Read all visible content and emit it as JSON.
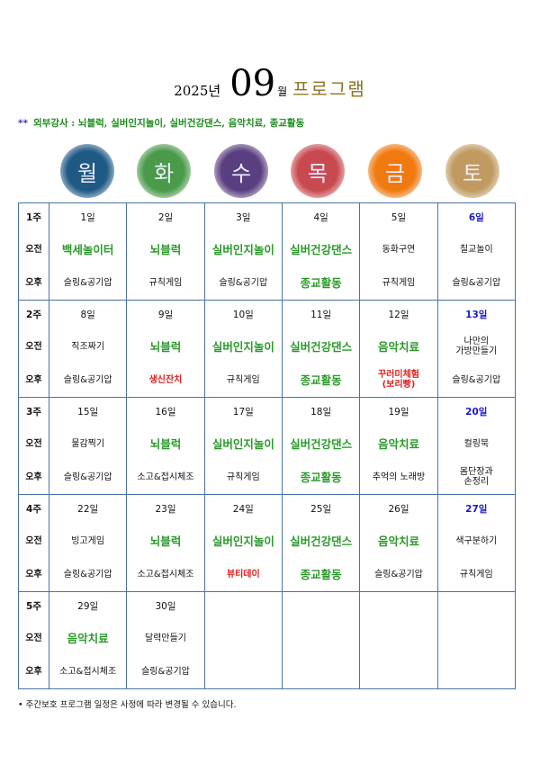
{
  "header": {
    "year": "2025년",
    "month": "09",
    "month_suffix": "월",
    "program": "프로그램"
  },
  "subtitle": {
    "marker": "**",
    "text": "외부강사 : 뇌블럭, 실버인지놀이, 실버건강댄스, 음악치료, 종교활동"
  },
  "weekdays": [
    {
      "label": "월",
      "color": "#1f5a85"
    },
    {
      "label": "화",
      "color": "#4a9a4a"
    },
    {
      "label": "수",
      "color": "#5a3f80"
    },
    {
      "label": "목",
      "color": "#c84a50"
    },
    {
      "label": "금",
      "color": "#f07a10"
    },
    {
      "label": "토",
      "color": "#c09a60"
    }
  ],
  "colors": {
    "green": "#2a9a2a",
    "red": "#e02020",
    "blue": "#1a1acc",
    "black": "#111111",
    "border": "#4a72a8"
  },
  "row_labels": {
    "am": "오전",
    "pm": "오후"
  },
  "weeks": [
    {
      "label": "1주",
      "days": [
        {
          "date": "1일",
          "am": "백세놀이터",
          "am_color": "green",
          "pm": "슬링&공기압"
        },
        {
          "date": "2일",
          "am": "뇌블럭",
          "am_color": "green",
          "pm": "규칙게임"
        },
        {
          "date": "3일",
          "am": "실버인지놀이",
          "am_color": "green",
          "pm": "슬링&공기압"
        },
        {
          "date": "4일",
          "am": "실버건강댄스",
          "am_color": "green",
          "pm": "종교활동",
          "pm_color": "green"
        },
        {
          "date": "5일",
          "am": "동화구연",
          "pm": "규칙게임"
        },
        {
          "date": "6일",
          "date_color": "blue",
          "am": "칠교놀이",
          "pm": "슬링&공기압"
        }
      ]
    },
    {
      "label": "2주",
      "days": [
        {
          "date": "8일",
          "am": "직조짜기",
          "pm": "슬링&공기압"
        },
        {
          "date": "9일",
          "am": "뇌블럭",
          "am_color": "green",
          "pm": "생신잔치",
          "pm_color": "red"
        },
        {
          "date": "10일",
          "am": "실버인지놀이",
          "am_color": "green",
          "pm": "규칙게임"
        },
        {
          "date": "11일",
          "am": "실버건강댄스",
          "am_color": "green",
          "pm": "종교활동",
          "pm_color": "green"
        },
        {
          "date": "12일",
          "am": "음악치료",
          "am_color": "green",
          "pm": "꾸러미체험\n(보리빵)",
          "pm_color": "red"
        },
        {
          "date": "13일",
          "date_color": "blue",
          "am": "나만의\n가방만들기",
          "pm": "슬링&공기압"
        }
      ]
    },
    {
      "label": "3주",
      "days": [
        {
          "date": "15일",
          "am": "물감찍기",
          "pm": "슬링&공기압"
        },
        {
          "date": "16일",
          "am": "뇌블럭",
          "am_color": "green",
          "pm": "소고&접시체조"
        },
        {
          "date": "17일",
          "am": "실버인지놀이",
          "am_color": "green",
          "pm": "규칙게임"
        },
        {
          "date": "18일",
          "am": "실버건강댄스",
          "am_color": "green",
          "pm": "종교활동",
          "pm_color": "green"
        },
        {
          "date": "19일",
          "am": "음악치료",
          "am_color": "green",
          "pm": "추억의 노래방"
        },
        {
          "date": "20일",
          "date_color": "blue",
          "am": "컬링북",
          "pm": "몸단장과\n손정리"
        }
      ]
    },
    {
      "label": "4주",
      "days": [
        {
          "date": "22일",
          "am": "빙고게임",
          "pm": "슬링&공기압"
        },
        {
          "date": "23일",
          "am": "뇌블럭",
          "am_color": "green",
          "pm": "소고&접시체조"
        },
        {
          "date": "24일",
          "am": "실버인지놀이",
          "am_color": "green",
          "pm": "뷰티데이",
          "pm_color": "red"
        },
        {
          "date": "25일",
          "am": "실버건강댄스",
          "am_color": "green",
          "pm": "종교활동",
          "pm_color": "green"
        },
        {
          "date": "26일",
          "am": "음악치료",
          "am_color": "green",
          "pm": "슬링&공기압"
        },
        {
          "date": "27일",
          "date_color": "blue",
          "am": "색구분하기",
          "pm": "규칙게임"
        }
      ]
    },
    {
      "label": "5주",
      "days": [
        {
          "date": "29일",
          "am": "음악치료",
          "am_color": "green",
          "pm": "소고&접시체조"
        },
        {
          "date": "30일",
          "am": "달력만들기",
          "pm": "슬링&공기압"
        },
        {},
        {},
        {},
        {}
      ]
    }
  ],
  "footer": "• 주간보호 프로그램 일정은 사정에 따라 변경될 수 있습니다."
}
